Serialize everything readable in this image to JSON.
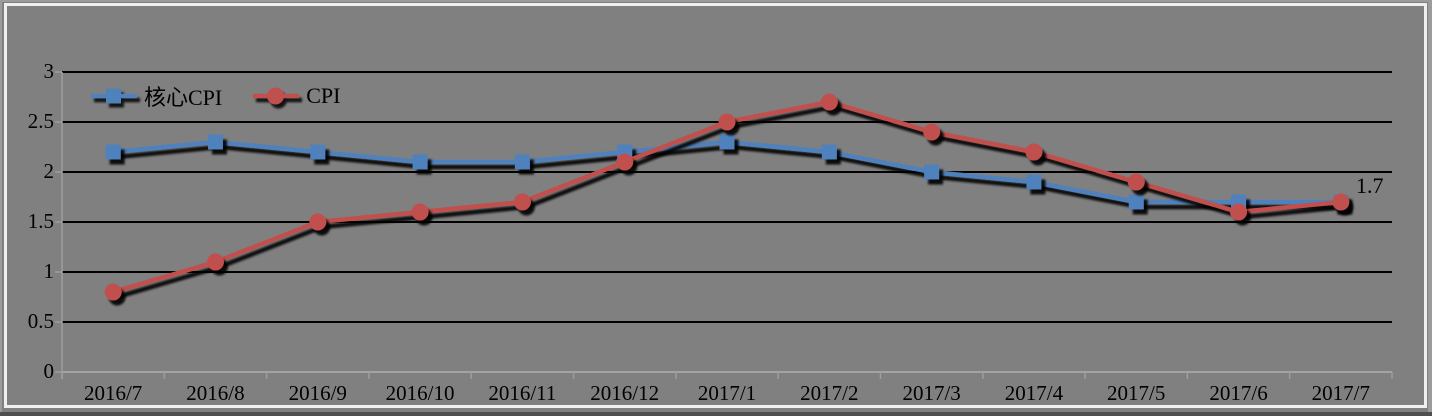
{
  "chart_data": {
    "type": "line",
    "categories": [
      "2016/7",
      "2016/8",
      "2016/9",
      "2016/10",
      "2016/11",
      "2016/12",
      "2017/1",
      "2017/2",
      "2017/3",
      "2017/4",
      "2017/5",
      "2017/6",
      "2017/7"
    ],
    "series": [
      {
        "name": "核心CPI",
        "marker": "square",
        "color": "#4f81bd",
        "values": [
          2.2,
          2.3,
          2.2,
          2.1,
          2.1,
          2.2,
          2.3,
          2.2,
          2.0,
          1.9,
          1.7,
          1.7,
          1.7
        ]
      },
      {
        "name": "CPI",
        "marker": "circle",
        "color": "#c0504d",
        "values": [
          0.8,
          1.1,
          1.5,
          1.6,
          1.7,
          2.1,
          2.5,
          2.7,
          2.4,
          2.2,
          1.9,
          1.6,
          1.7
        ]
      }
    ],
    "title": "",
    "xlabel": "",
    "ylabel": "",
    "ylim": [
      0,
      3
    ],
    "yticks": [
      0,
      0.5,
      1,
      1.5,
      2,
      2.5,
      3
    ],
    "legend_position": "top-left-inside",
    "grid": "horizontal",
    "end_label": {
      "series": "CPI",
      "text": "1.7",
      "value": 1.7
    },
    "colors": {
      "background": "#808080",
      "gridline": "#000000",
      "baseline_axis": "#a3a3a3",
      "tick": "#9e9e9e",
      "text": "#000000",
      "shadow": "#000000",
      "frame_border": "#f0f0f0"
    }
  }
}
